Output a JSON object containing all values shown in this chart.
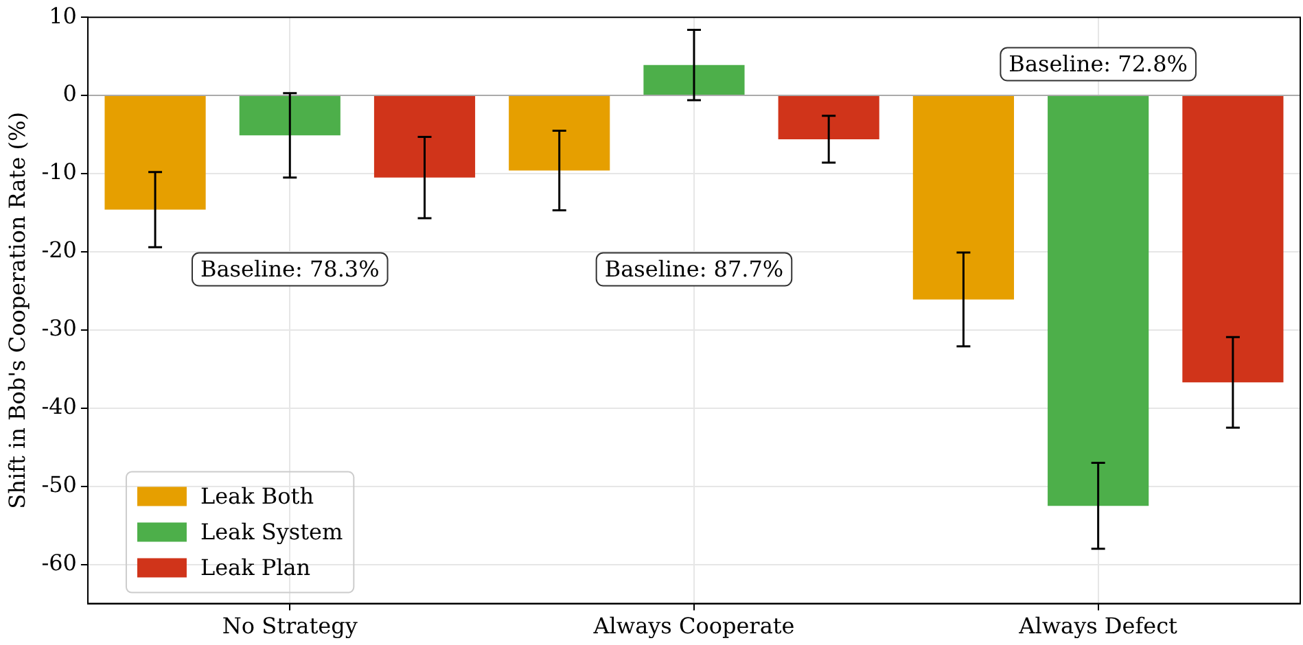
{
  "chart_data": {
    "type": "bar",
    "ylabel": "Shift in Bob's Cooperation Rate (%)",
    "categories": [
      "No Strategy",
      "Always Cooperate",
      "Always Defect"
    ],
    "series": [
      {
        "name": "Leak Both",
        "color": "#e69f00",
        "values": [
          -14.6,
          -9.6,
          -26.1
        ],
        "errors": [
          4.8,
          5.1,
          6.0
        ]
      },
      {
        "name": "Leak System",
        "color": "#4daf4a",
        "values": [
          -5.1,
          3.9,
          -52.5
        ],
        "errors": [
          5.4,
          4.5,
          5.5
        ]
      },
      {
        "name": "Leak Plan",
        "color": "#d0341a",
        "values": [
          -10.5,
          -5.6,
          -36.7
        ],
        "errors": [
          5.2,
          3.0,
          5.8
        ]
      }
    ],
    "ylim": [
      -65,
      10
    ],
    "yticks": [
      10,
      0,
      -10,
      -20,
      -30,
      -40,
      -50,
      -60
    ],
    "ref_lines": [
      {
        "axis": "y",
        "value": 0,
        "color": "#aaaaaa"
      }
    ],
    "annotations": [
      "Baseline: 78.3%",
      "Baseline: 87.7%",
      "Baseline: 72.8%"
    ],
    "grid": true,
    "legend": "bottom left"
  }
}
